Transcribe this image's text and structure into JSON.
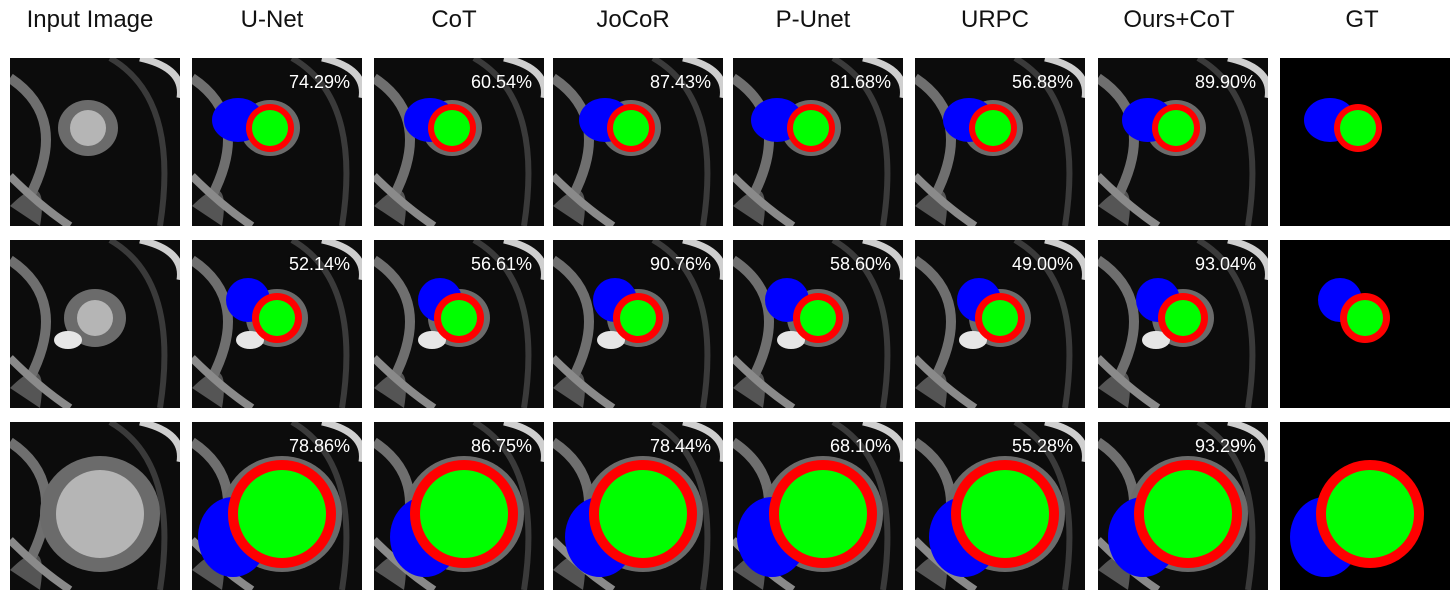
{
  "columns": [
    "Input Image",
    "U-Net",
    "CoT",
    "JoCoR",
    "P-Unet",
    "URPC",
    "Ours+CoT",
    "GT"
  ],
  "rows": [
    {
      "scores": [
        "74.29%",
        "60.54%",
        "87.43%",
        "81.68%",
        "56.88%",
        "89.90%"
      ]
    },
    {
      "scores": [
        "52.14%",
        "56.61%",
        "90.76%",
        "58.60%",
        "49.00%",
        "93.04%"
      ]
    },
    {
      "scores": [
        "78.86%",
        "86.75%",
        "78.44%",
        "68.10%",
        "55.28%",
        "93.29%"
      ]
    }
  ],
  "colors": {
    "green": "#00ff00",
    "red": "#ff0000",
    "blue": "#0000ff",
    "background": "#0b0b0b"
  }
}
